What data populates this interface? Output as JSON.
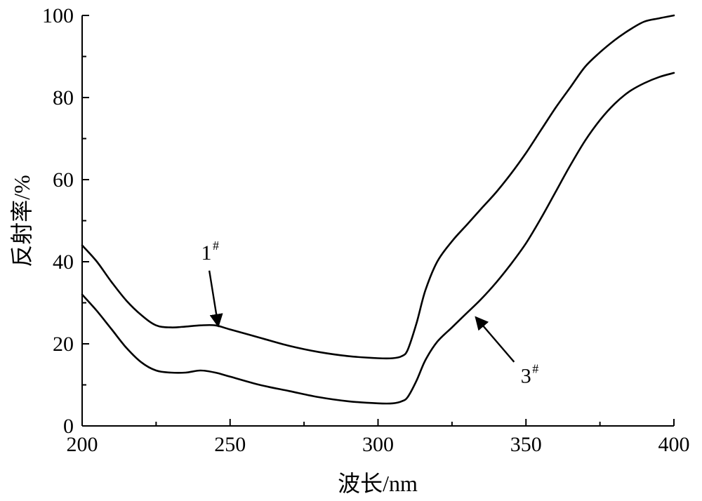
{
  "chart_data": {
    "type": "line",
    "xlabel": "波长/nm",
    "ylabel": "反射率/%",
    "xlim": [
      200,
      400
    ],
    "ylim": [
      0,
      100
    ],
    "x_ticks": [
      "200",
      "250",
      "300",
      "350",
      "400"
    ],
    "y_ticks": [
      "0",
      "20",
      "40",
      "60",
      "80",
      "100"
    ],
    "grid": false,
    "series": [
      {
        "name": "1",
        "x": [
          200,
          205,
          210,
          215,
          220,
          225,
          230,
          235,
          240,
          245,
          250,
          260,
          270,
          280,
          290,
          300,
          305,
          308,
          310,
          313,
          316,
          320,
          325,
          330,
          335,
          340,
          345,
          350,
          355,
          360,
          365,
          370,
          375,
          380,
          385,
          390,
          395,
          400
        ],
        "y": [
          44,
          40,
          35,
          30.5,
          27,
          24.5,
          24,
          24.2,
          24.5,
          24.5,
          23.5,
          21.5,
          19.5,
          18,
          17,
          16.5,
          16.5,
          17,
          18.5,
          25,
          33,
          40,
          45,
          49,
          53,
          57,
          61.5,
          66.5,
          72,
          77.5,
          82.5,
          87.5,
          91,
          94,
          96.5,
          98.5,
          99.3,
          100
        ]
      },
      {
        "name": "3",
        "x": [
          200,
          205,
          210,
          215,
          220,
          225,
          230,
          235,
          240,
          245,
          250,
          260,
          270,
          280,
          290,
          300,
          305,
          308,
          310,
          313,
          316,
          320,
          325,
          330,
          335,
          340,
          345,
          350,
          355,
          360,
          365,
          370,
          375,
          380,
          385,
          390,
          395,
          400
        ],
        "y": [
          32,
          28,
          23.5,
          19,
          15.5,
          13.5,
          13,
          13,
          13.5,
          13,
          12,
          10,
          8.5,
          7,
          6,
          5.5,
          5.5,
          6,
          7,
          11,
          16,
          20.5,
          24,
          27.5,
          31,
          35,
          39.5,
          44.5,
          50.5,
          57,
          63.5,
          69.5,
          74.5,
          78.5,
          81.5,
          83.5,
          85,
          86
        ]
      }
    ],
    "annotations": [
      {
        "label": "1",
        "sup": "#",
        "target_x": 246,
        "target_y": 24.3,
        "text_x": 242,
        "text_y": 40.5
      },
      {
        "label": "3",
        "sup": "#",
        "target_x": 333,
        "target_y": 26.5,
        "text_x": 350,
        "text_y": 10.5
      }
    ]
  }
}
